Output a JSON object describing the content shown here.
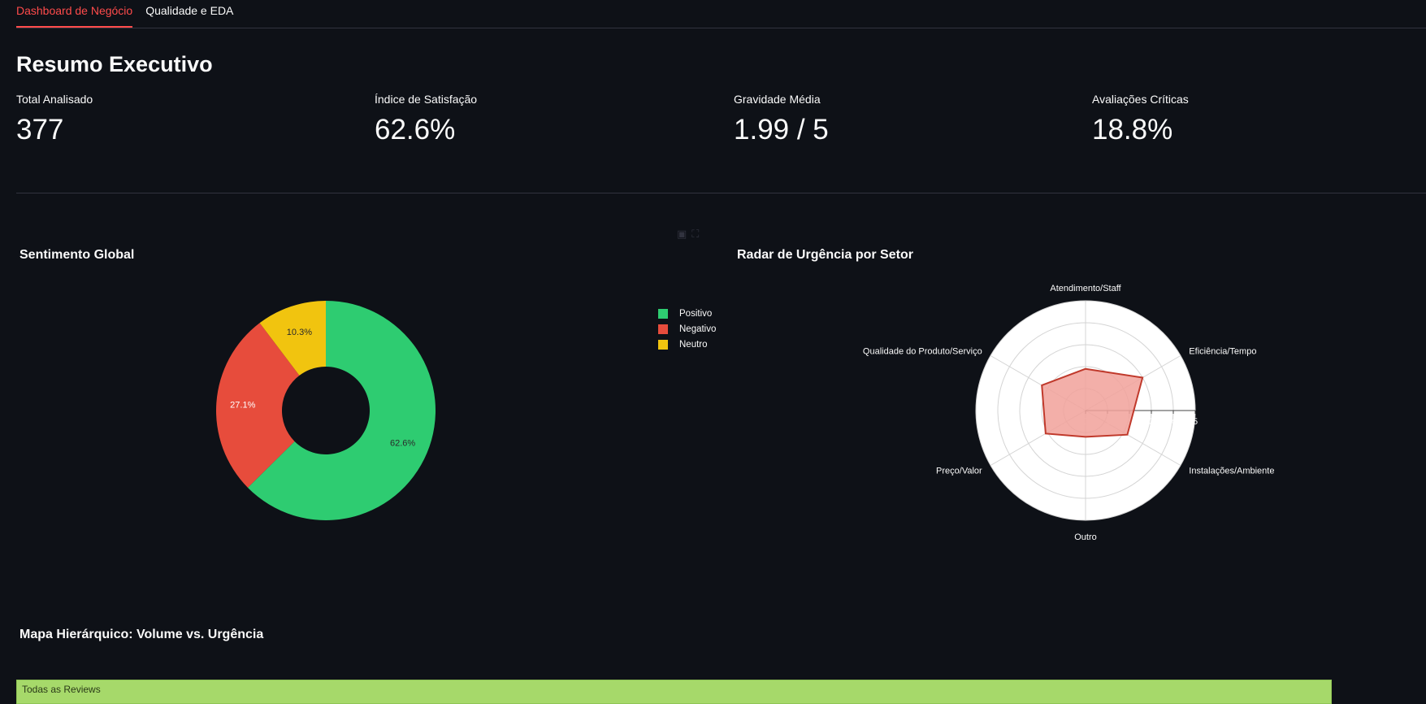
{
  "tabs": [
    {
      "label": "Dashboard de Negócio",
      "active": true
    },
    {
      "label": "Qualidade e EDA",
      "active": false
    }
  ],
  "header": {
    "title": "Resumo Executivo"
  },
  "metrics": [
    {
      "label": "Total Analisado",
      "value": "377"
    },
    {
      "label": "Índice de Satisfação",
      "value": "62.6%"
    },
    {
      "label": "Gravidade Média",
      "value": "1.99 / 5"
    },
    {
      "label": "Avaliações Críticas",
      "value": "18.8%"
    }
  ],
  "sentiment": {
    "title": "Sentimento Global",
    "chart_data": {
      "type": "pie",
      "hole": true,
      "categories": [
        "Positivo",
        "Negativo",
        "Neutro"
      ],
      "values": [
        62.6,
        27.1,
        10.3
      ],
      "labels": [
        "62.6%",
        "27.1%",
        "10.3%"
      ],
      "colors": [
        "#2ecc71",
        "#e74c3c",
        "#f1c40f"
      ],
      "legend": "top-right"
    }
  },
  "radar": {
    "title": "Radar de Urgência por Setor",
    "chart_data": {
      "type": "radar",
      "categories": [
        "Atendimento/Staff",
        "Eficiência/Tempo",
        "Instalações/Ambiente",
        "Outro",
        "Preço/Valor",
        "Qualidade do Produto/Serviço"
      ],
      "values": [
        1.9,
        3.0,
        2.2,
        1.2,
        2.1,
        2.3
      ],
      "rlim": [
        0,
        5
      ],
      "ticks": [
        "0",
        "1",
        "2",
        "3",
        "4",
        "5"
      ],
      "fill_color": "#f1a19a",
      "line_color": "#c0392b"
    }
  },
  "treemap": {
    "title": "Mapa Hierárquico: Volume vs. Urgência",
    "root_label": "Todas as Reviews",
    "root_color": "#a6d96a"
  }
}
